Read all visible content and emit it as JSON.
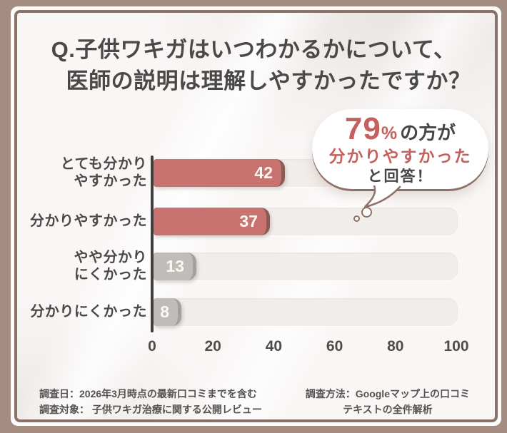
{
  "frame": {
    "outer_color": "#a58c81",
    "line_color": "#8a7268",
    "panel_color": "#f9f7f6"
  },
  "title": {
    "line1": "Q.子供ワキガはいつわかるかについて、",
    "line2": "医師の説明は理解しやすかったですか？"
  },
  "callout": {
    "value": "79",
    "percent_sign": "%",
    "suffix": "の方が",
    "line2": "分かりやすかった",
    "line3": "と回答！",
    "accent_color": "#c4615e"
  },
  "chart_data": {
    "type": "bar",
    "orientation": "horizontal",
    "title": "",
    "xlabel": "",
    "ylabel": "",
    "categories": [
      "とても分かり\nやすかった",
      "分かりやすかった",
      "やや分かり\nにくかった",
      "分かりにくかった"
    ],
    "values": [
      42,
      37,
      13,
      8
    ],
    "bar_colors": [
      "#c87370",
      "#c87370",
      "#bfbcba",
      "#bfbcba"
    ],
    "bar_cap_colors": [
      "#8c5b55",
      "#8c5b55",
      "#a3a09d",
      "#a3a09d"
    ],
    "track_color": "#f1edea",
    "value_label_color": "#fdf8f1",
    "xlim": [
      0,
      100
    ],
    "x_ticks": [
      0,
      20,
      40,
      60,
      80,
      100
    ],
    "grid": false
  },
  "footer": {
    "left_lines": [
      "調査日：2026年3月時点の最新口コミまでを含む",
      "調査対象： 子供ワキガ治療に関する公開レビュー"
    ],
    "right_lines": [
      "調査方法：Googleマップ上の口コミ",
      "テキストの全件解析"
    ]
  }
}
